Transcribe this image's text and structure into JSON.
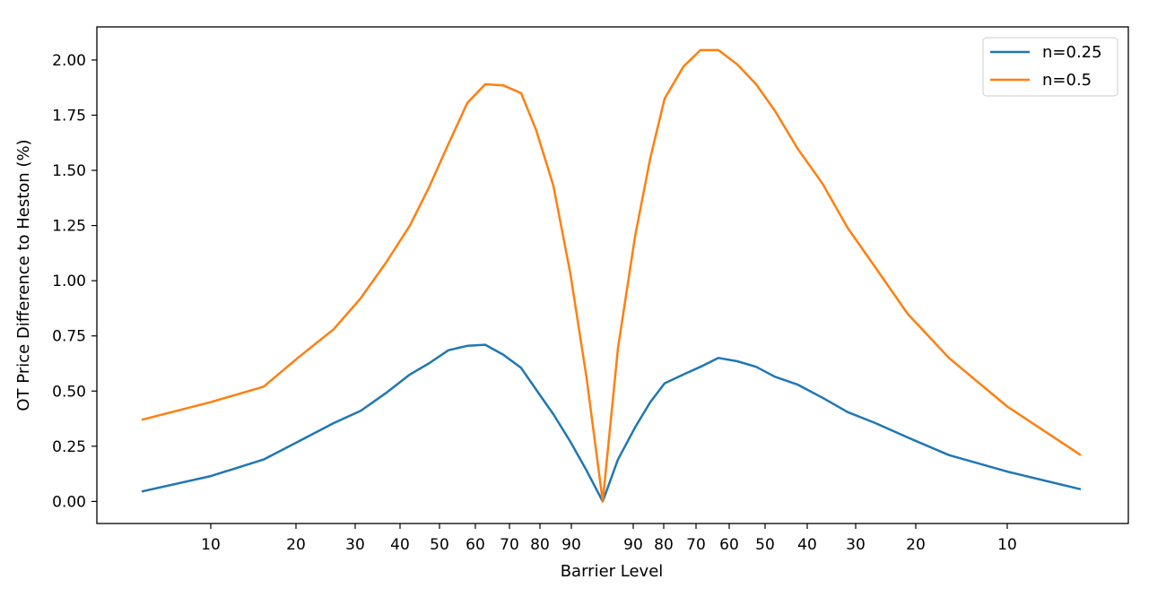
{
  "chart_data": {
    "type": "line",
    "title": "",
    "xlabel": "Barrier Level",
    "ylabel": "OT Price Difference to Heston (%)",
    "ylim": [
      -0.1,
      2.15
    ],
    "y_ticks": [
      "0.00",
      "0.25",
      "0.50",
      "0.75",
      "1.00",
      "1.25",
      "1.50",
      "1.75",
      "2.00"
    ],
    "x_tick_labels": [
      "10",
      "20",
      "30",
      "40",
      "50",
      "60",
      "70",
      "80",
      "90",
      "90",
      "80",
      "70",
      "60",
      "50",
      "40",
      "30",
      "20",
      "10"
    ],
    "grid": false,
    "legend": {
      "placement": "top-right",
      "entries": [
        "n=0.25",
        "n=0.5"
      ]
    },
    "series": [
      {
        "name": "n=0.25",
        "color": "#1f77b4",
        "values": [
          0.045,
          0.115,
          0.19,
          0.27,
          0.355,
          0.41,
          0.49,
          0.575,
          0.625,
          0.685,
          0.705,
          0.71,
          0.665,
          0.605,
          0.505,
          0.395,
          0.27,
          0.14,
          0.0,
          0.19,
          0.335,
          0.45,
          0.535,
          0.575,
          0.61,
          0.65,
          0.635,
          0.61,
          0.565,
          0.53,
          0.47,
          0.405,
          0.355,
          0.29,
          0.21,
          0.135,
          0.055
        ]
      },
      {
        "name": "n=0.5",
        "color": "#ff7f0e",
        "values": [
          0.37,
          0.45,
          0.52,
          0.65,
          0.78,
          0.92,
          1.08,
          1.25,
          1.42,
          1.62,
          1.805,
          1.89,
          1.885,
          1.85,
          1.68,
          1.43,
          1.03,
          0.56,
          0.0,
          0.695,
          1.2,
          1.555,
          1.825,
          1.97,
          2.045,
          2.045,
          1.98,
          1.89,
          1.77,
          1.6,
          1.44,
          1.24,
          1.06,
          0.85,
          0.65,
          0.43,
          0.21
        ]
      }
    ]
  }
}
